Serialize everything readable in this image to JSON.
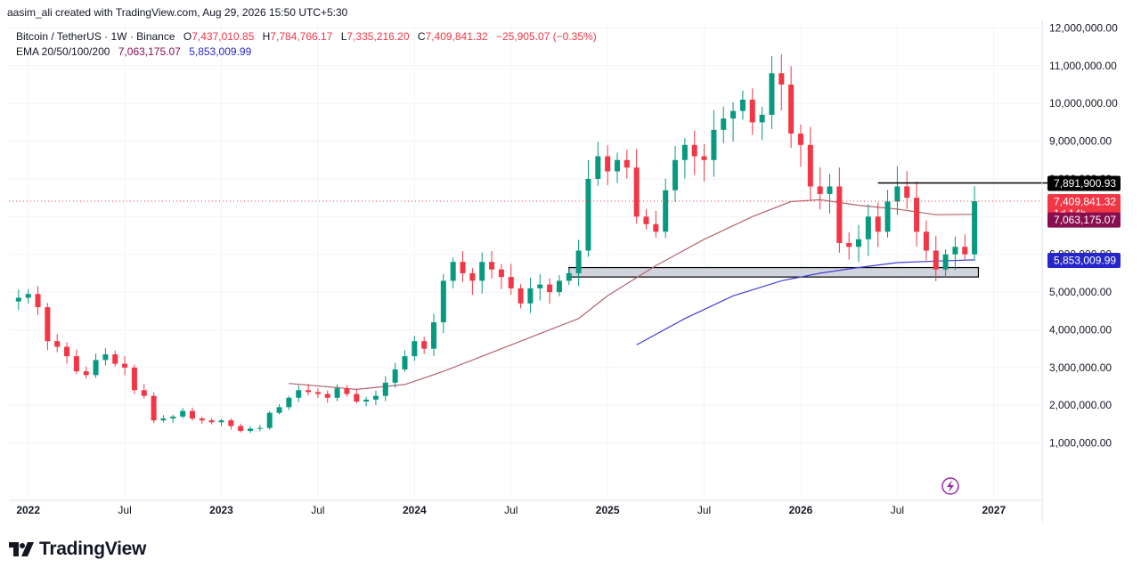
{
  "header": {
    "attribution": "aasim_ali created with TradingView.com, Aug 29, 2026 15:50 UTC+5:30"
  },
  "legend": {
    "symbol": "Bitcoin / TetherUS · 1W · Binance",
    "open_label": "O",
    "open": "7,437,010.85",
    "high_label": "H",
    "high": "7,784,766.17",
    "low_label": "L",
    "low": "7,335,216.20",
    "close_label": "C",
    "close": "7,409,841.32",
    "change": "−25,905.07 (−0.35%)",
    "ema_label": "EMA 20/50/100/200",
    "ema_1": "7,063,175.07",
    "ema_2": "5,853,009.99"
  },
  "logo": {
    "text": "TradingView",
    "icon": "tradingview-logo-icon"
  },
  "colors": {
    "up": "#089981",
    "down": "#f23645",
    "ema100": "#b2646c",
    "ema200": "#3f3fd8",
    "price_label": "#f23645",
    "ema100_label": "#880e4f",
    "ema200_label": "#2727c9"
  },
  "chart_data": {
    "type": "candlestick",
    "x_tick_labels": [
      "2022",
      "Jul",
      "2023",
      "Jul",
      "2024",
      "Jul",
      "2025",
      "Jul",
      "2026",
      "Jul",
      "2027"
    ],
    "y_tick_labels": [
      "1,000,000.00",
      "2,000,000.00",
      "3,000,000.00",
      "4,000,000.00",
      "5,000,000.00",
      "6,000,000.00",
      "7,000,000.00",
      "8,000,000.00",
      "9,000,000.00",
      "10,000,000.00",
      "11,000,000.00",
      "12,000,000.00"
    ],
    "y_ticks": [
      1000000,
      2000000,
      3000000,
      4000000,
      5000000,
      6000000,
      7000000,
      8000000,
      9000000,
      10000000,
      11000000,
      12000000
    ],
    "ylim": [
      0,
      12600000
    ],
    "grid": true,
    "price_labels": [
      {
        "value": 7891900.93,
        "text": "7,891,900.93"
      },
      {
        "value": 7409841.32,
        "text": "7,409,841.32",
        "countdown": "1d 14h"
      },
      {
        "value": 7063175.07,
        "text": "7,063,175.07"
      },
      {
        "value": 5853009.99,
        "text": "5,853,009.99"
      }
    ],
    "resistance_line": {
      "value": 7891900.93,
      "from": "2026-04",
      "to": "2026-10"
    },
    "support_zone": {
      "low": 5400000,
      "high": 5650000,
      "from": "2024-10",
      "to": "2026-09"
    },
    "last_close": 7409841.32,
    "closes": [
      [
        2021.95,
        4850000
      ],
      [
        2022.0,
        4950000
      ],
      [
        2022.05,
        4600000
      ],
      [
        2022.1,
        3700000
      ],
      [
        2022.15,
        3550000
      ],
      [
        2022.2,
        3300000
      ],
      [
        2022.25,
        2900000
      ],
      [
        2022.3,
        2800000
      ],
      [
        2022.35,
        3200000
      ],
      [
        2022.4,
        3350000
      ],
      [
        2022.45,
        3100000
      ],
      [
        2022.5,
        3000000
      ],
      [
        2022.55,
        2400000
      ],
      [
        2022.6,
        2250000
      ],
      [
        2022.65,
        1600000
      ],
      [
        2022.7,
        1650000
      ],
      [
        2022.75,
        1700000
      ],
      [
        2022.8,
        1850000
      ],
      [
        2022.85,
        1650000
      ],
      [
        2022.9,
        1600000
      ],
      [
        2022.95,
        1550000
      ],
      [
        2023.0,
        1600000
      ],
      [
        2023.05,
        1450000
      ],
      [
        2023.1,
        1320000
      ],
      [
        2023.15,
        1380000
      ],
      [
        2023.2,
        1400000
      ],
      [
        2023.25,
        1800000
      ],
      [
        2023.3,
        1950000
      ],
      [
        2023.35,
        2200000
      ],
      [
        2023.4,
        2400000
      ],
      [
        2023.45,
        2350000
      ],
      [
        2023.5,
        2300000
      ],
      [
        2023.55,
        2200000
      ],
      [
        2023.6,
        2450000
      ],
      [
        2023.65,
        2300000
      ],
      [
        2023.7,
        2100000
      ],
      [
        2023.75,
        2150000
      ],
      [
        2023.8,
        2250000
      ],
      [
        2023.85,
        2600000
      ],
      [
        2023.9,
        2950000
      ],
      [
        2023.95,
        3300000
      ],
      [
        2024.0,
        3700000
      ],
      [
        2024.05,
        3500000
      ],
      [
        2024.1,
        4200000
      ],
      [
        2024.15,
        5300000
      ],
      [
        2024.2,
        5800000
      ],
      [
        2024.25,
        5500000
      ],
      [
        2024.3,
        5300000
      ],
      [
        2024.35,
        5800000
      ],
      [
        2024.4,
        5600000
      ],
      [
        2024.45,
        5400000
      ],
      [
        2024.5,
        5100000
      ],
      [
        2024.55,
        4700000
      ],
      [
        2024.6,
        5100000
      ],
      [
        2024.65,
        5200000
      ],
      [
        2024.7,
        5000000
      ],
      [
        2024.75,
        5300000
      ],
      [
        2024.8,
        5500000
      ],
      [
        2024.85,
        6100000
      ],
      [
        2024.9,
        8000000
      ],
      [
        2024.95,
        8600000
      ],
      [
        2025.0,
        8200000
      ],
      [
        2025.05,
        8500000
      ],
      [
        2025.1,
        8300000
      ],
      [
        2025.15,
        7000000
      ],
      [
        2025.2,
        6800000
      ],
      [
        2025.25,
        6600000
      ],
      [
        2025.3,
        7700000
      ],
      [
        2025.35,
        8500000
      ],
      [
        2025.4,
        8900000
      ],
      [
        2025.45,
        8600000
      ],
      [
        2025.5,
        8500000
      ],
      [
        2025.55,
        9300000
      ],
      [
        2025.6,
        9600000
      ],
      [
        2025.65,
        9800000
      ],
      [
        2025.7,
        10100000
      ],
      [
        2025.75,
        9500000
      ],
      [
        2025.8,
        9700000
      ],
      [
        2025.85,
        10800000
      ],
      [
        2025.9,
        10500000
      ],
      [
        2025.95,
        9200000
      ],
      [
        2026.0,
        8900000
      ],
      [
        2026.05,
        7800000
      ],
      [
        2026.1,
        7600000
      ],
      [
        2026.15,
        7800000
      ],
      [
        2026.2,
        6300000
      ],
      [
        2026.25,
        6200000
      ],
      [
        2026.3,
        6400000
      ],
      [
        2026.35,
        7000000
      ],
      [
        2026.4,
        6600000
      ],
      [
        2026.45,
        7400000
      ],
      [
        2026.5,
        7800000
      ],
      [
        2026.55,
        7500000
      ],
      [
        2026.6,
        6600000
      ],
      [
        2026.65,
        6100000
      ],
      [
        2026.7,
        5600000
      ],
      [
        2026.75,
        6000000
      ],
      [
        2026.8,
        6200000
      ],
      [
        2026.85,
        6000000
      ],
      [
        2026.9,
        7409841.32
      ]
    ],
    "series": [
      {
        "name": "EMA 100",
        "values": [
          [
            2023.35,
            2580000
          ],
          [
            2023.7,
            2420000
          ],
          [
            2023.95,
            2550000
          ],
          [
            2024.15,
            2900000
          ],
          [
            2024.4,
            3400000
          ],
          [
            2024.65,
            3900000
          ],
          [
            2024.85,
            4300000
          ],
          [
            2025.0,
            4900000
          ],
          [
            2025.25,
            5700000
          ],
          [
            2025.5,
            6400000
          ],
          [
            2025.75,
            7000000
          ],
          [
            2025.95,
            7400000
          ],
          [
            2026.1,
            7450000
          ],
          [
            2026.3,
            7300000
          ],
          [
            2026.5,
            7200000
          ],
          [
            2026.7,
            7050000
          ],
          [
            2026.9,
            7063175.07
          ]
        ]
      },
      {
        "name": "EMA 200",
        "values": [
          [
            2025.15,
            3600000
          ],
          [
            2025.4,
            4300000
          ],
          [
            2025.65,
            4900000
          ],
          [
            2025.9,
            5300000
          ],
          [
            2026.1,
            5500000
          ],
          [
            2026.3,
            5650000
          ],
          [
            2026.5,
            5780000
          ],
          [
            2026.7,
            5820000
          ],
          [
            2026.9,
            5853009.99
          ]
        ]
      }
    ]
  }
}
